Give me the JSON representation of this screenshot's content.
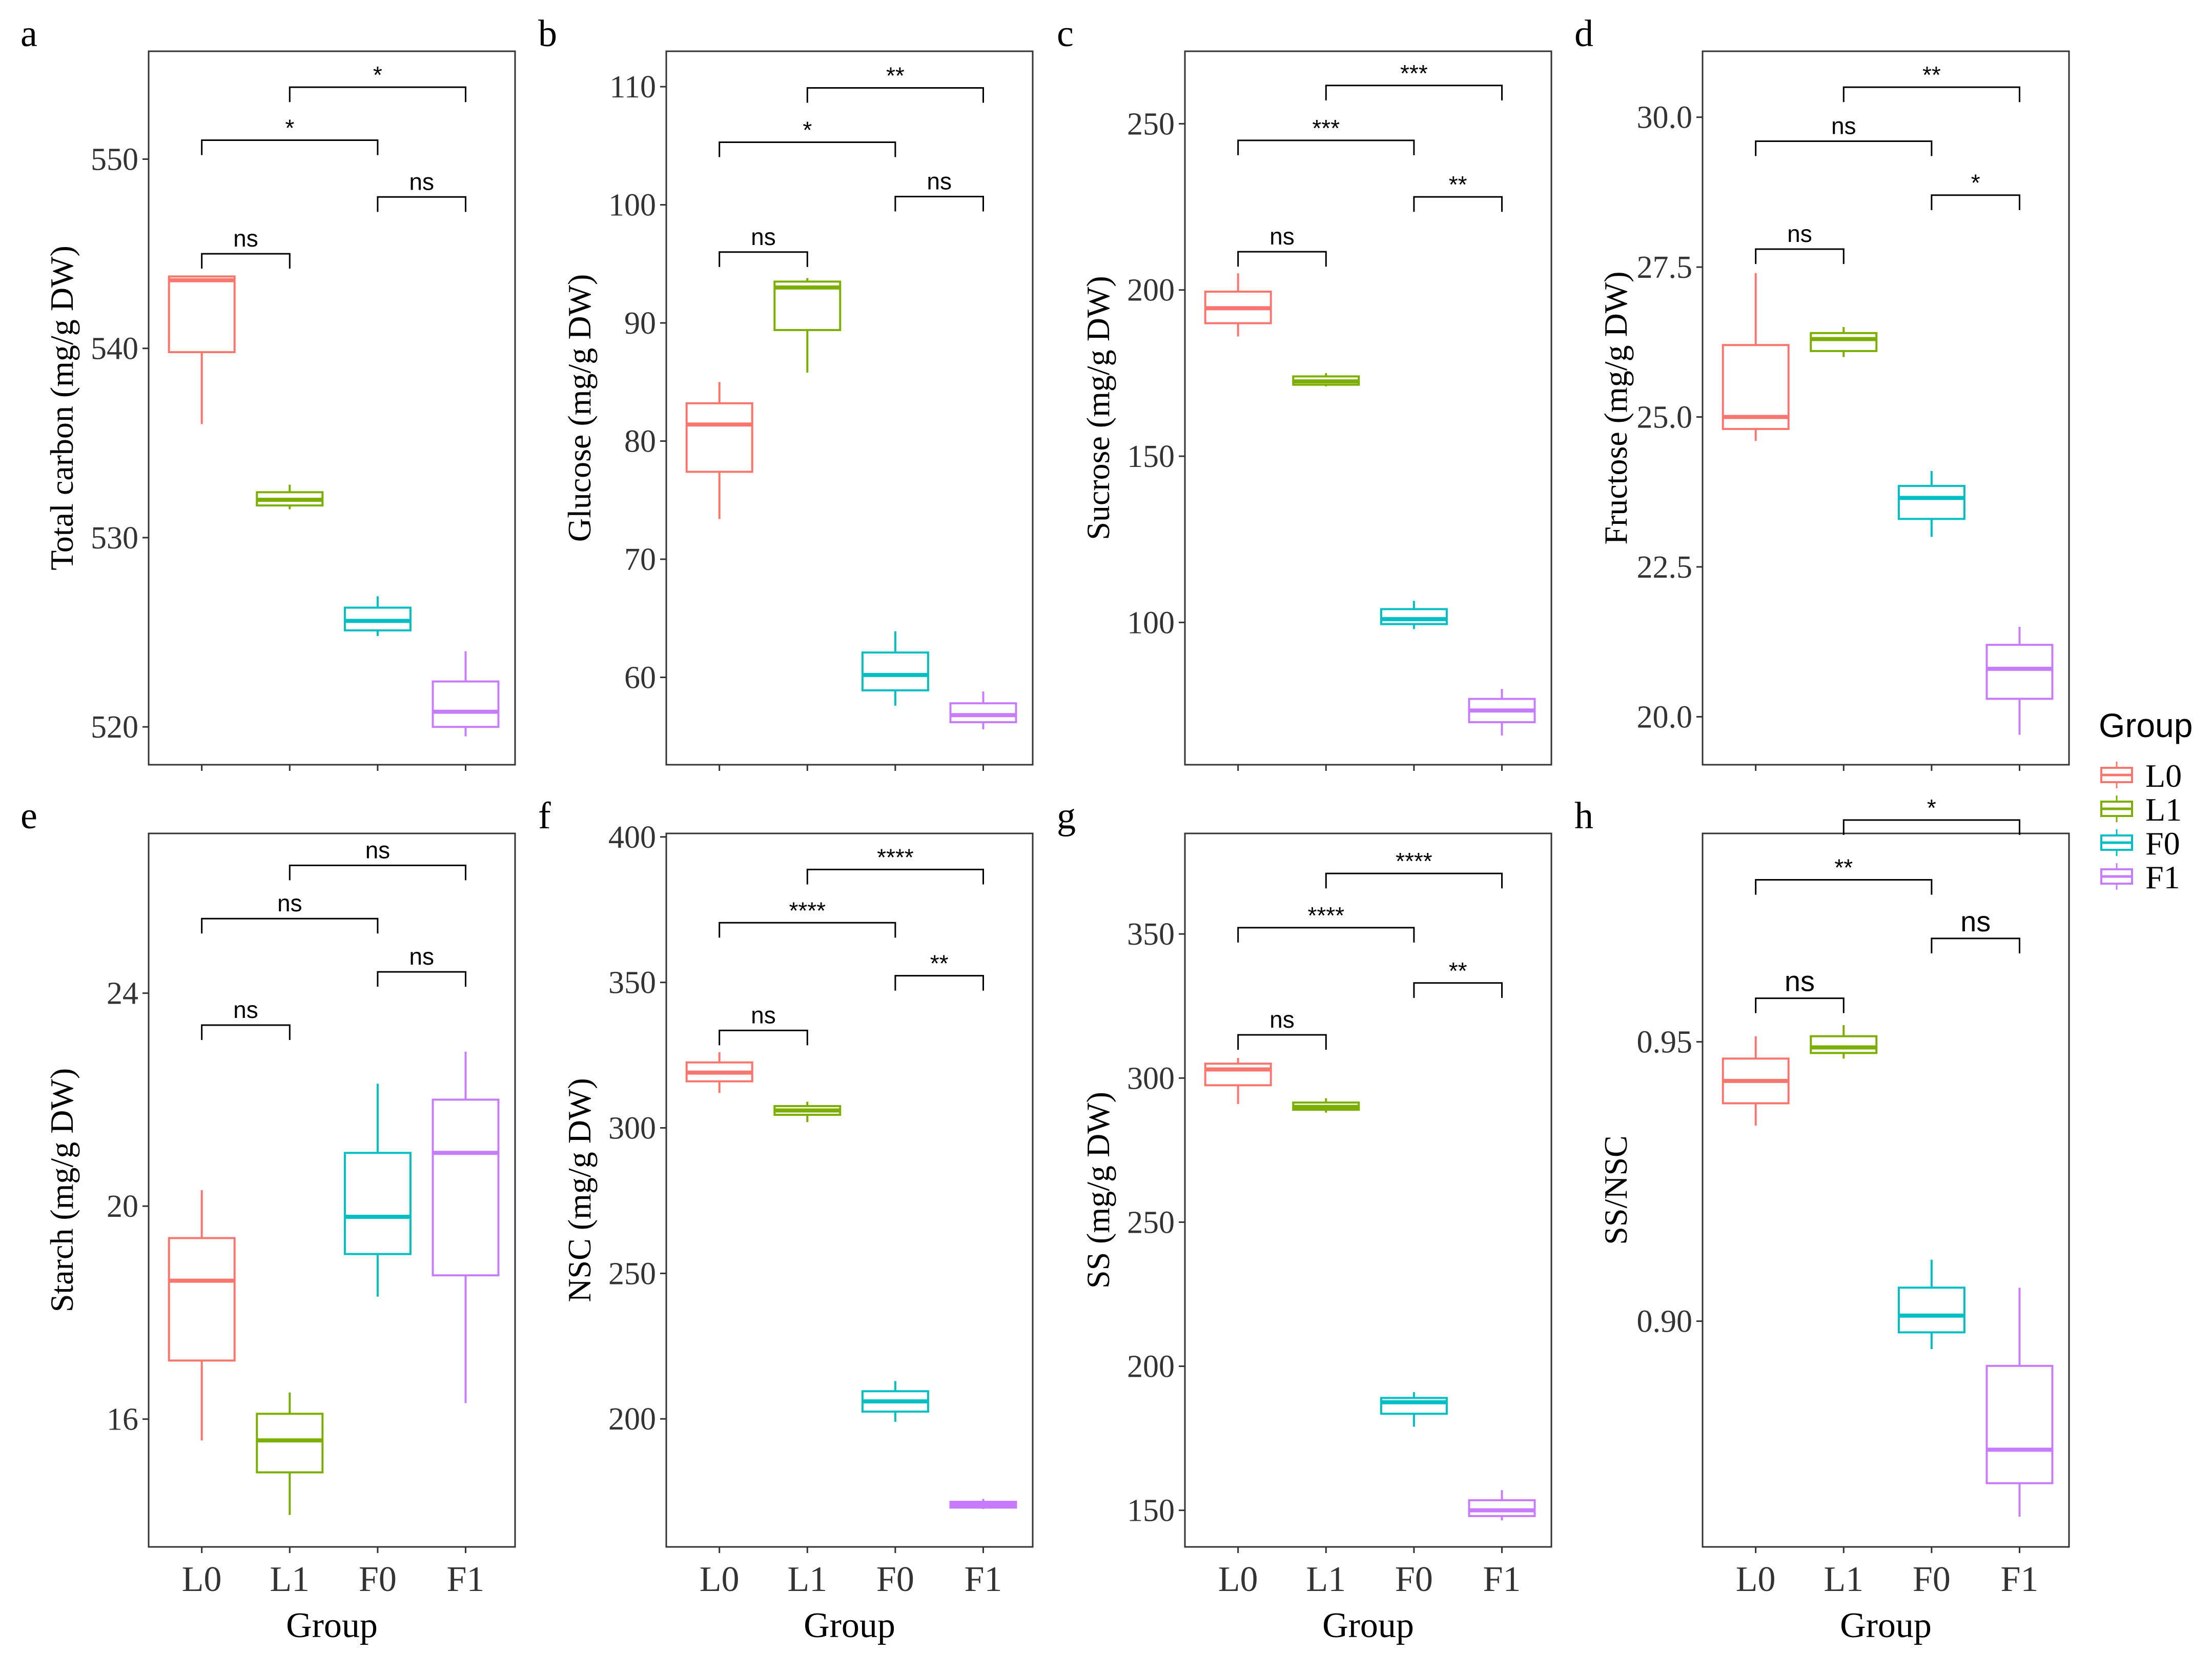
{
  "legend": {
    "title": "Group",
    "items": [
      {
        "label": "L0",
        "color": "#F8766D"
      },
      {
        "label": "L1",
        "color": "#7CAE00"
      },
      {
        "label": "F0",
        "color": "#00BFC4"
      },
      {
        "label": "F1",
        "color": "#C77CFF"
      }
    ]
  },
  "chart_data": [
    {
      "panel": "a",
      "type": "boxplot",
      "ylabel": "Total carbon (mg/g DW)",
      "xlabel": "Group",
      "categories": [
        "L0",
        "L1",
        "F0",
        "F1"
      ],
      "ylim": [
        518.0,
        555.7
      ],
      "yticks": [
        520,
        530,
        540,
        550
      ],
      "ytick_labels": [
        "520",
        "530",
        "540",
        "550"
      ],
      "boxes": [
        {
          "group": "L0",
          "min": 536.0,
          "q1": 539.8,
          "median": 543.6,
          "q3": 543.8,
          "max": 543.8
        },
        {
          "group": "L1",
          "min": 531.5,
          "q1": 531.7,
          "median": 532.0,
          "q3": 532.4,
          "max": 532.8
        },
        {
          "group": "F0",
          "min": 524.8,
          "q1": 525.1,
          "median": 525.6,
          "q3": 526.3,
          "max": 526.9
        },
        {
          "group": "F1",
          "min": 519.5,
          "q1": 520.0,
          "median": 520.8,
          "q3": 522.4,
          "max": 524.0
        }
      ],
      "comparisons": [
        {
          "from": "L0",
          "to": "L1",
          "y": 545.0,
          "label": "ns"
        },
        {
          "from": "F0",
          "to": "F1",
          "y": 548.0,
          "label": "ns"
        },
        {
          "from": "L0",
          "to": "F0",
          "y": 551.0,
          "label": "*"
        },
        {
          "from": "L1",
          "to": "F1",
          "y": 553.8,
          "label": "*"
        }
      ]
    },
    {
      "panel": "b",
      "type": "boxplot",
      "ylabel": "Glucose (mg/g DW)",
      "xlabel": "Group",
      "categories": [
        "L0",
        "L1",
        "F0",
        "F1"
      ],
      "ylim": [
        52.6,
        113.0
      ],
      "yticks": [
        60,
        70,
        80,
        90,
        100,
        110
      ],
      "ytick_labels": [
        "60",
        "70",
        "80",
        "90",
        "100",
        "110"
      ],
      "boxes": [
        {
          "group": "L0",
          "min": 73.4,
          "q1": 77.4,
          "median": 81.4,
          "q3": 83.2,
          "max": 85.0
        },
        {
          "group": "L1",
          "min": 85.8,
          "q1": 89.4,
          "median": 93.0,
          "q3": 93.5,
          "max": 93.8
        },
        {
          "group": "F0",
          "min": 57.6,
          "q1": 58.9,
          "median": 60.2,
          "q3": 62.1,
          "max": 63.9
        },
        {
          "group": "F1",
          "min": 55.6,
          "q1": 56.2,
          "median": 56.8,
          "q3": 57.8,
          "max": 58.8
        }
      ],
      "comparisons": [
        {
          "from": "L0",
          "to": "L1",
          "y": 96.0,
          "label": "ns"
        },
        {
          "from": "F0",
          "to": "F1",
          "y": 100.7,
          "label": "ns"
        },
        {
          "from": "L0",
          "to": "F0",
          "y": 105.3,
          "label": "*"
        },
        {
          "from": "L1",
          "to": "F1",
          "y": 109.9,
          "label": "**"
        }
      ]
    },
    {
      "panel": "c",
      "type": "boxplot",
      "ylabel": "Sucrose (mg/g DW)",
      "xlabel": "Group",
      "categories": [
        "L0",
        "L1",
        "F0",
        "F1"
      ],
      "ylim": [
        57.2,
        271.8
      ],
      "yticks": [
        100,
        150,
        200,
        250
      ],
      "ytick_labels": [
        "100",
        "150",
        "200",
        "250"
      ],
      "boxes": [
        {
          "group": "L0",
          "min": 186.0,
          "q1": 190.0,
          "median": 194.5,
          "q3": 199.5,
          "max": 205.0
        },
        {
          "group": "L1",
          "min": 171.0,
          "q1": 171.5,
          "median": 172.5,
          "q3": 174.0,
          "max": 175.0
        },
        {
          "group": "F0",
          "min": 98.0,
          "q1": 99.5,
          "median": 101.0,
          "q3": 104.0,
          "max": 106.5
        },
        {
          "group": "F1",
          "min": 66.0,
          "q1": 70.0,
          "median": 73.5,
          "q3": 77.0,
          "max": 80.0
        }
      ],
      "comparisons": [
        {
          "from": "L0",
          "to": "L1",
          "y": 211.5,
          "label": "ns"
        },
        {
          "from": "F0",
          "to": "F1",
          "y": 228.0,
          "label": "**"
        },
        {
          "from": "L0",
          "to": "F0",
          "y": 245.0,
          "label": "***"
        },
        {
          "from": "L1",
          "to": "F1",
          "y": 261.5,
          "label": "***"
        }
      ]
    },
    {
      "panel": "d",
      "type": "boxplot",
      "ylabel": "Fructose (mg/g DW)",
      "xlabel": "Group",
      "categories": [
        "L0",
        "L1",
        "F0",
        "F1"
      ],
      "ylim": [
        19.2,
        31.1
      ],
      "yticks": [
        20.0,
        22.5,
        25.0,
        27.5,
        30.0
      ],
      "ytick_labels": [
        "20.0",
        "22.5",
        "25.0",
        "27.5",
        "30.0"
      ],
      "boxes": [
        {
          "group": "L0",
          "min": 24.6,
          "q1": 24.8,
          "median": 25.0,
          "q3": 26.2,
          "max": 27.4
        },
        {
          "group": "L1",
          "min": 26.0,
          "q1": 26.1,
          "median": 26.3,
          "q3": 26.4,
          "max": 26.5
        },
        {
          "group": "F0",
          "min": 23.0,
          "q1": 23.3,
          "median": 23.65,
          "q3": 23.85,
          "max": 24.1
        },
        {
          "group": "F1",
          "min": 19.7,
          "q1": 20.3,
          "median": 20.8,
          "q3": 21.2,
          "max": 21.5
        }
      ],
      "comparisons": [
        {
          "from": "L0",
          "to": "L1",
          "y": 27.8,
          "label": "ns"
        },
        {
          "from": "F0",
          "to": "F1",
          "y": 28.7,
          "label": "*"
        },
        {
          "from": "L0",
          "to": "F0",
          "y": 29.6,
          "label": "ns"
        },
        {
          "from": "L1",
          "to": "F1",
          "y": 30.5,
          "label": "**"
        }
      ]
    },
    {
      "panel": "e",
      "type": "boxplot",
      "ylabel": "Starch (mg/g DW)",
      "xlabel": "Group",
      "categories": [
        "L0",
        "L1",
        "F0",
        "F1"
      ],
      "ylim": [
        13.6,
        27.0
      ],
      "yticks": [
        16,
        20,
        24
      ],
      "ytick_labels": [
        "16",
        "20",
        "24"
      ],
      "boxes": [
        {
          "group": "L0",
          "min": 15.6,
          "q1": 17.1,
          "median": 18.6,
          "q3": 19.4,
          "max": 20.3
        },
        {
          "group": "L1",
          "min": 14.2,
          "q1": 15.0,
          "median": 15.6,
          "q3": 16.1,
          "max": 16.5
        },
        {
          "group": "F0",
          "min": 18.3,
          "q1": 19.1,
          "median": 19.8,
          "q3": 21.0,
          "max": 22.3
        },
        {
          "group": "F1",
          "min": 16.3,
          "q1": 18.7,
          "median": 21.0,
          "q3": 22.0,
          "max": 22.9
        }
      ],
      "comparisons": [
        {
          "from": "L0",
          "to": "L1",
          "y": 23.4,
          "label": "ns"
        },
        {
          "from": "F0",
          "to": "F1",
          "y": 24.4,
          "label": "ns"
        },
        {
          "from": "L0",
          "to": "F0",
          "y": 25.4,
          "label": "ns"
        },
        {
          "from": "L1",
          "to": "F1",
          "y": 26.4,
          "label": "ns"
        }
      ]
    },
    {
      "panel": "f",
      "type": "boxplot",
      "ylabel": "NSC (mg/g DW)",
      "xlabel": "Group",
      "categories": [
        "L0",
        "L1",
        "F0",
        "F1"
      ],
      "ylim": [
        156.0,
        401.2
      ],
      "yticks": [
        200,
        250,
        300,
        350,
        400
      ],
      "ytick_labels": [
        "200",
        "250",
        "300",
        "350",
        "400"
      ],
      "boxes": [
        {
          "group": "L0",
          "min": 312.0,
          "q1": 316.0,
          "median": 319.0,
          "q3": 322.5,
          "max": 326.0
        },
        {
          "group": "L1",
          "min": 302.0,
          "q1": 304.5,
          "median": 306.0,
          "q3": 307.5,
          "max": 309.0
        },
        {
          "group": "F0",
          "min": 199.0,
          "q1": 202.5,
          "median": 206.0,
          "q3": 209.5,
          "max": 213.0
        },
        {
          "group": "F1",
          "min": 169.0,
          "q1": 169.5,
          "median": 170.5,
          "q3": 171.5,
          "max": 172.5
        }
      ],
      "comparisons": [
        {
          "from": "L0",
          "to": "L1",
          "y": 333.5,
          "label": "ns"
        },
        {
          "from": "F0",
          "to": "F1",
          "y": 352.3,
          "label": "**"
        },
        {
          "from": "L0",
          "to": "F0",
          "y": 370.5,
          "label": "****"
        },
        {
          "from": "L1",
          "to": "F1",
          "y": 388.8,
          "label": "****"
        }
      ]
    },
    {
      "panel": "g",
      "type": "boxplot",
      "ylabel": "SS (mg/g DW)",
      "xlabel": "Group",
      "categories": [
        "L0",
        "L1",
        "F0",
        "F1"
      ],
      "ylim": [
        137.3,
        384.9
      ],
      "yticks": [
        150,
        200,
        250,
        300,
        350
      ],
      "ytick_labels": [
        "150",
        "200",
        "250",
        "300",
        "350"
      ],
      "boxes": [
        {
          "group": "L0",
          "min": 291.0,
          "q1": 297.5,
          "median": 303.0,
          "q3": 305.0,
          "max": 307.0
        },
        {
          "group": "L1",
          "min": 288.0,
          "q1": 289.0,
          "median": 290.0,
          "q3": 291.5,
          "max": 293.0
        },
        {
          "group": "F0",
          "min": 179.0,
          "q1": 183.5,
          "median": 187.5,
          "q3": 189.0,
          "max": 191.0
        },
        {
          "group": "F1",
          "min": 146.5,
          "q1": 148.0,
          "median": 150.0,
          "q3": 153.5,
          "max": 157.0
        }
      ],
      "comparisons": [
        {
          "from": "L0",
          "to": "L1",
          "y": 315.0,
          "label": "ns"
        },
        {
          "from": "F0",
          "to": "F1",
          "y": 333.0,
          "label": "**"
        },
        {
          "from": "L0",
          "to": "F0",
          "y": 352.2,
          "label": "****"
        },
        {
          "from": "L1",
          "to": "F1",
          "y": 371.0,
          "label": "****"
        }
      ]
    },
    {
      "panel": "h",
      "type": "boxplot",
      "ylabel": "SS/NSC",
      "xlabel": "Group",
      "categories": [
        "L0",
        "L1",
        "F0",
        "F1"
      ],
      "ylim": [
        0.8596,
        0.9873
      ],
      "yticks": [
        0.9,
        0.95
      ],
      "ytick_labels": [
        "0.90",
        "0.95"
      ],
      "boxes": [
        {
          "group": "L0",
          "min": 0.935,
          "q1": 0.939,
          "median": 0.943,
          "q3": 0.947,
          "max": 0.951
        },
        {
          "group": "L1",
          "min": 0.947,
          "q1": 0.948,
          "median": 0.949,
          "q3": 0.951,
          "max": 0.953
        },
        {
          "group": "F0",
          "min": 0.895,
          "q1": 0.898,
          "median": 0.901,
          "q3": 0.906,
          "max": 0.911
        },
        {
          "group": "F1",
          "min": 0.865,
          "q1": 0.871,
          "median": 0.877,
          "q3": 0.892,
          "max": 0.906
        }
      ],
      "comparisons": [
        {
          "from": "L0",
          "to": "L1",
          "y": 0.9578,
          "label": "ns"
        },
        {
          "from": "F0",
          "to": "F1",
          "y": 0.9685,
          "label": "ns"
        },
        {
          "from": "L0",
          "to": "F0",
          "y": 0.979,
          "label": "**"
        },
        {
          "from": "L1",
          "to": "F1",
          "y": 0.9897,
          "label": "*"
        }
      ]
    }
  ]
}
